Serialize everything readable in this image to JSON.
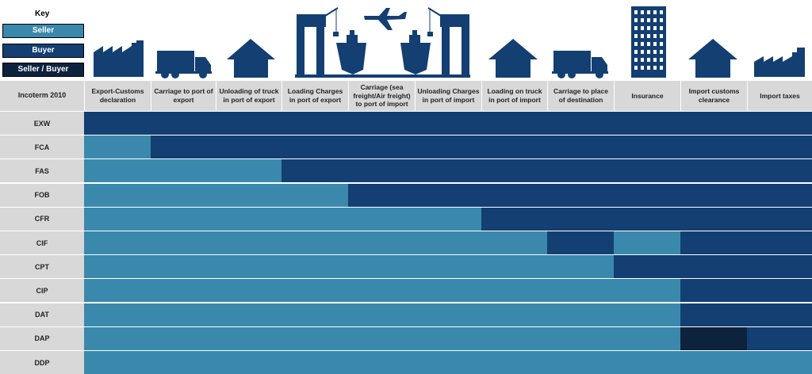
{
  "key": {
    "title": "Key",
    "seller": "Seller",
    "buyer": "Buyer",
    "seller_buyer": "Seller / Buyer"
  },
  "colors": {
    "seller": "#3a89ac",
    "buyer": "#133f72",
    "seller_buyer": "#0d223d",
    "icon": "#133f72"
  },
  "icons": [
    "factory-icon",
    "truck-icon",
    "house-icon",
    "port-cranes-ships-airplane-icon",
    "house-icon",
    "truck-icon",
    "skyscraper-icon",
    "house-icon",
    "factory-icon"
  ],
  "table": {
    "corner": "Incoterm 2010",
    "columns": [
      "Export-Customs declaration",
      "Carriage to port of export",
      "Unloading of truck in port of export",
      "Loading Charges in port of export",
      "Carriage (sea freight/Air freight) to port of import",
      "Unloading Charges in port of import",
      "Loading on truck in port of import",
      "Carriage to place of destination",
      "Insurance",
      "Import customs clearance",
      "Import taxes"
    ],
    "rows": [
      {
        "term": "EXW",
        "cells": [
          "B",
          "B",
          "B",
          "B",
          "B",
          "B",
          "B",
          "B",
          "B",
          "B",
          "B"
        ]
      },
      {
        "term": "FCA",
        "cells": [
          "S",
          "B",
          "B",
          "B",
          "B",
          "B",
          "B",
          "B",
          "B",
          "B",
          "B"
        ]
      },
      {
        "term": "FAS",
        "cells": [
          "S",
          "S",
          "S",
          "B",
          "B",
          "B",
          "B",
          "B",
          "B",
          "B",
          "B"
        ]
      },
      {
        "term": "FOB",
        "cells": [
          "S",
          "S",
          "S",
          "S",
          "B",
          "B",
          "B",
          "B",
          "B",
          "B",
          "B"
        ]
      },
      {
        "term": "CFR",
        "cells": [
          "S",
          "S",
          "S",
          "S",
          "S",
          "S",
          "B",
          "B",
          "B",
          "B",
          "B"
        ]
      },
      {
        "term": "CIF",
        "cells": [
          "S",
          "S",
          "S",
          "S",
          "S",
          "S",
          "S",
          "B",
          "S",
          "B",
          "B"
        ]
      },
      {
        "term": "CPT",
        "cells": [
          "S",
          "S",
          "S",
          "S",
          "S",
          "S",
          "S",
          "S",
          "B",
          "B",
          "B"
        ]
      },
      {
        "term": "CIP",
        "cells": [
          "S",
          "S",
          "S",
          "S",
          "S",
          "S",
          "S",
          "S",
          "S",
          "B",
          "B"
        ]
      },
      {
        "term": "DAT",
        "cells": [
          "S",
          "S",
          "S",
          "S",
          "S",
          "S",
          "S",
          "S",
          "S",
          "B",
          "B"
        ]
      },
      {
        "term": "DAP",
        "cells": [
          "S",
          "S",
          "S",
          "S",
          "S",
          "S",
          "S",
          "S",
          "S",
          "X",
          "B"
        ]
      },
      {
        "term": "DDP",
        "cells": [
          "S",
          "S",
          "S",
          "S",
          "S",
          "S",
          "S",
          "S",
          "S",
          "S",
          "S"
        ]
      }
    ]
  }
}
